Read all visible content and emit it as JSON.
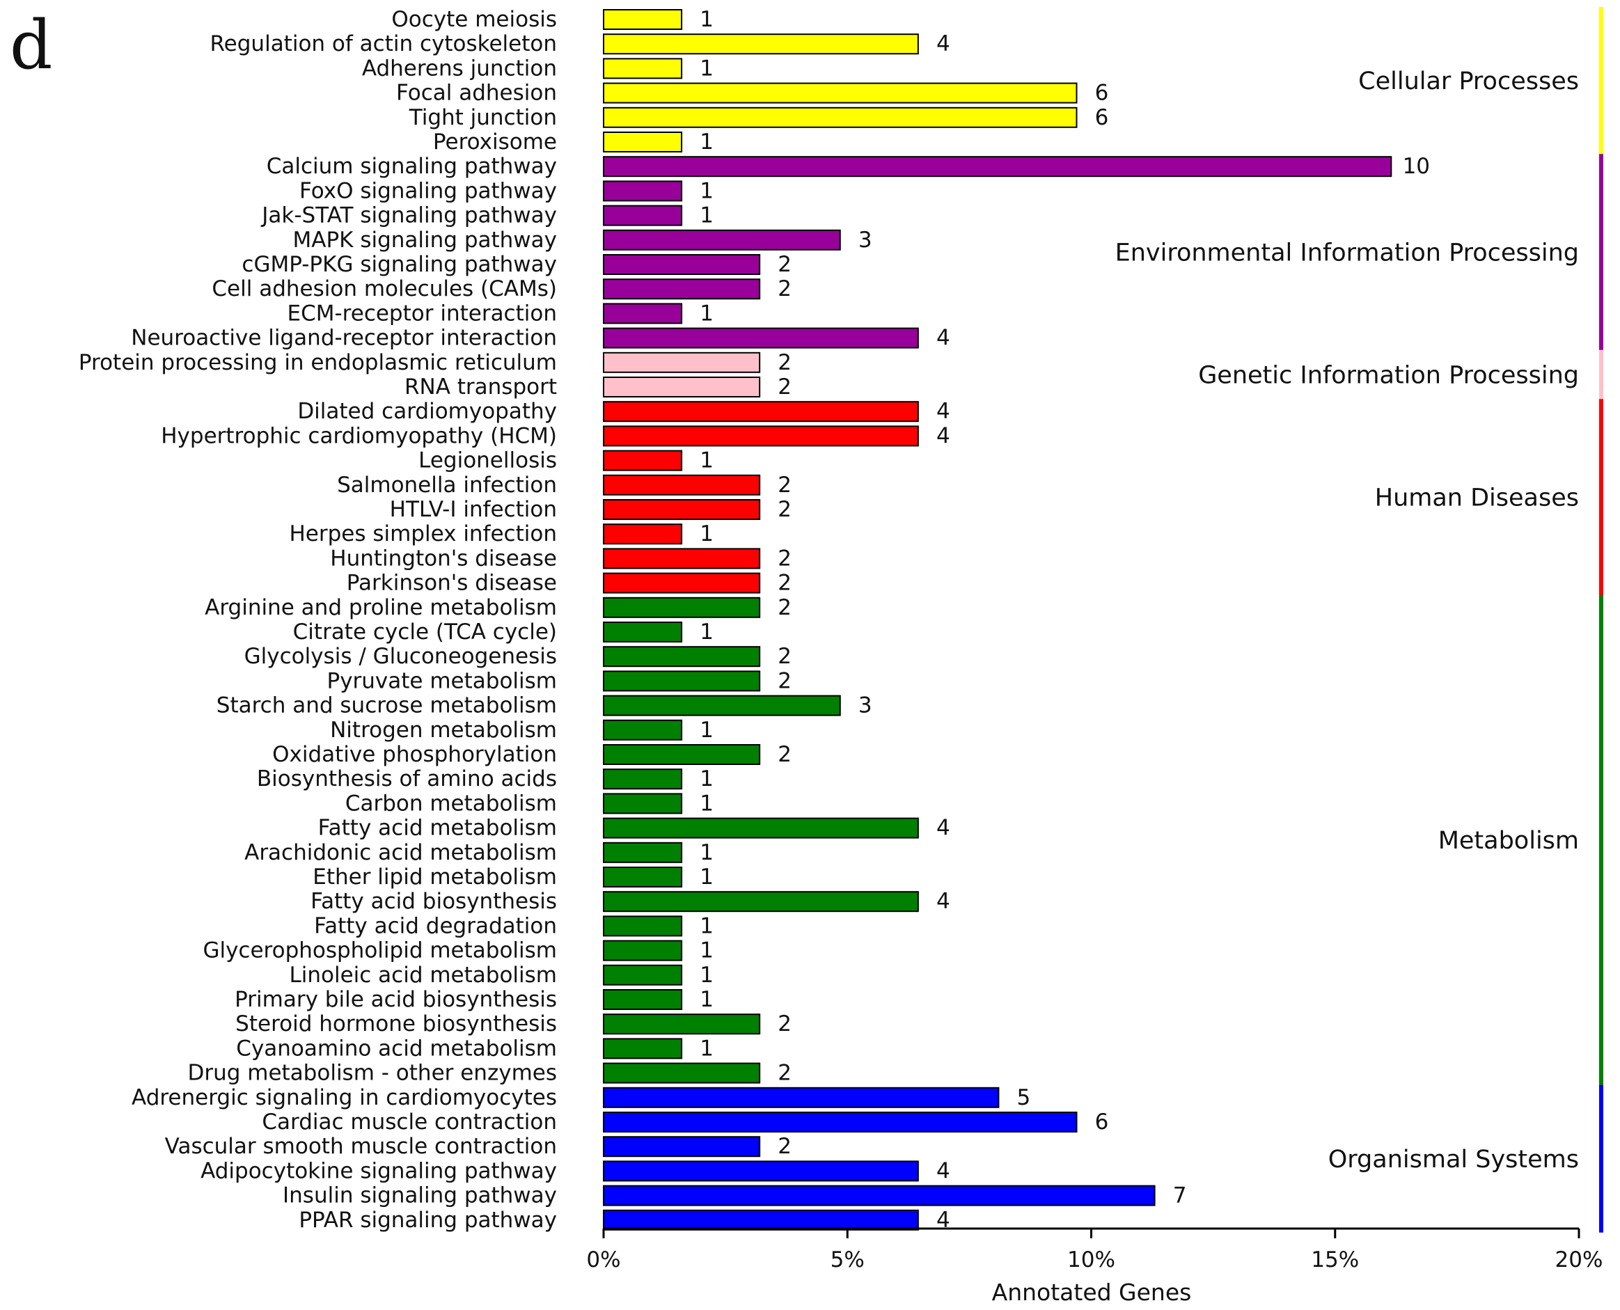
{
  "panel_label": "d",
  "chart_data": {
    "type": "bar",
    "orientation": "horizontal",
    "title": "",
    "xlabel": "Annotated Genes",
    "ylabel": "",
    "xlim": [
      0,
      20
    ],
    "x_ticks": [
      0,
      5,
      10,
      15,
      20
    ],
    "x_tick_labels": [
      "0%",
      "5%",
      "10%",
      "15%",
      "20%"
    ],
    "value_unit": "percent of annotated genes",
    "groups": [
      {
        "name": "Cellular Processes",
        "color": "#FFFF00",
        "start": 0,
        "end": 5
      },
      {
        "name": "Environmental Information Processing",
        "color": "#990099",
        "start": 6,
        "end": 13
      },
      {
        "name": "Genetic Information Processing",
        "color": "#FFC0CB",
        "start": 14,
        "end": 15
      },
      {
        "name": "Human Diseases",
        "color": "#FF0000",
        "start": 16,
        "end": 23
      },
      {
        "name": "Metabolism",
        "color": "#008000",
        "start": 24,
        "end": 43
      },
      {
        "name": "Organismal Systems",
        "color": "#0000FF",
        "start": 44,
        "end": 49
      }
    ],
    "categories": [
      "Oocyte meiosis",
      "Regulation of actin cytoskeleton",
      "Adherens junction",
      "Focal adhesion",
      "Tight junction",
      "Peroxisome",
      "Calcium signaling pathway",
      "FoxO signaling pathway",
      "Jak-STAT signaling pathway",
      "MAPK signaling pathway",
      "cGMP-PKG signaling pathway",
      "Cell adhesion molecules (CAMs)",
      "ECM-receptor interaction",
      "Neuroactive ligand-receptor interaction",
      "Protein processing in endoplasmic reticulum",
      "RNA transport",
      "Dilated cardiomyopathy",
      "Hypertrophic cardiomyopathy (HCM)",
      "Legionellosis",
      "Salmonella infection",
      "HTLV-I infection",
      "Herpes simplex infection",
      "Huntington's disease",
      "Parkinson's disease",
      "Arginine and proline metabolism",
      "Citrate cycle (TCA cycle)",
      "Glycolysis / Gluconeogenesis",
      "Pyruvate metabolism",
      "Starch and sucrose metabolism",
      "Nitrogen metabolism",
      "Oxidative phosphorylation",
      "Biosynthesis of amino acids",
      "Carbon metabolism",
      "Fatty acid metabolism",
      "Arachidonic acid metabolism",
      "Ether lipid metabolism",
      "Fatty acid biosynthesis",
      "Fatty acid degradation",
      "Glycerophospholipid metabolism",
      "Linoleic acid metabolism",
      "Primary bile acid biosynthesis",
      "Steroid hormone biosynthesis",
      "Cyanoamino acid metabolism",
      "Drug metabolism - other enzymes",
      "Adrenergic signaling in cardiomyocytes",
      "Cardiac muscle contraction",
      "Vascular smooth muscle contraction",
      "Adipocytokine signaling pathway",
      "Insulin signaling pathway",
      "PPAR signaling pathway"
    ],
    "counts": [
      1,
      4,
      1,
      6,
      6,
      1,
      10,
      1,
      1,
      3,
      2,
      2,
      1,
      4,
      2,
      2,
      4,
      4,
      1,
      2,
      2,
      1,
      2,
      2,
      2,
      1,
      2,
      2,
      3,
      1,
      2,
      1,
      1,
      4,
      1,
      1,
      4,
      1,
      1,
      1,
      1,
      2,
      1,
      2,
      5,
      6,
      2,
      4,
      7,
      4
    ],
    "values": [
      1.6,
      6.45,
      1.6,
      9.7,
      9.7,
      1.6,
      16.15,
      1.6,
      1.6,
      4.85,
      3.2,
      3.2,
      1.6,
      6.45,
      3.2,
      3.2,
      6.45,
      6.45,
      1.6,
      3.2,
      3.2,
      1.6,
      3.2,
      3.2,
      3.2,
      1.6,
      3.2,
      3.2,
      4.85,
      1.6,
      3.2,
      1.6,
      1.6,
      6.45,
      1.6,
      1.6,
      6.45,
      1.6,
      1.6,
      1.6,
      1.6,
      3.2,
      1.6,
      3.2,
      8.1,
      9.7,
      3.2,
      6.45,
      11.3,
      6.45
    ]
  }
}
